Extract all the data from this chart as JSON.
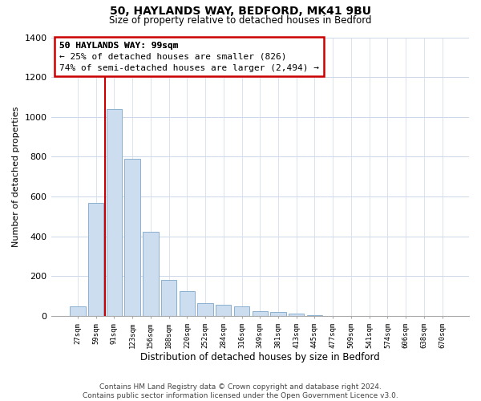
{
  "title": "50, HAYLANDS WAY, BEDFORD, MK41 9BU",
  "subtitle": "Size of property relative to detached houses in Bedford",
  "xlabel": "Distribution of detached houses by size in Bedford",
  "ylabel": "Number of detached properties",
  "bar_labels": [
    "27sqm",
    "59sqm",
    "91sqm",
    "123sqm",
    "156sqm",
    "188sqm",
    "220sqm",
    "252sqm",
    "284sqm",
    "316sqm",
    "349sqm",
    "381sqm",
    "413sqm",
    "445sqm",
    "477sqm",
    "509sqm",
    "541sqm",
    "574sqm",
    "606sqm",
    "638sqm",
    "670sqm"
  ],
  "bar_values": [
    50,
    570,
    1040,
    790,
    425,
    180,
    125,
    65,
    55,
    50,
    25,
    20,
    12,
    5,
    0,
    0,
    0,
    0,
    0,
    0,
    0
  ],
  "bar_color": "#ccddf0",
  "bar_edge_color": "#8ab0d0",
  "vline_x_index": 2,
  "vline_color": "#cc0000",
  "ylim": [
    0,
    1400
  ],
  "yticks": [
    0,
    200,
    400,
    600,
    800,
    1000,
    1200,
    1400
  ],
  "annotation_title": "50 HAYLANDS WAY: 99sqm",
  "annotation_line1": "← 25% of detached houses are smaller (826)",
  "annotation_line2": "74% of semi-detached houses are larger (2,494) →",
  "footer_line1": "Contains HM Land Registry data © Crown copyright and database right 2024.",
  "footer_line2": "Contains public sector information licensed under the Open Government Licence v3.0.",
  "background_color": "#ffffff",
  "grid_color": "#ccd8e8"
}
